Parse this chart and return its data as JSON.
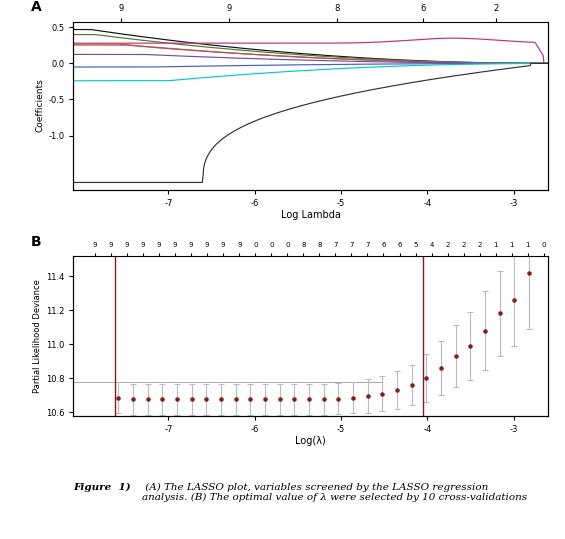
{
  "fig_width": 5.65,
  "fig_height": 5.39,
  "dpi": 100,
  "panel_A": {
    "label": "A",
    "xlabel": "Log Lambda",
    "ylabel": "Coefficients",
    "xlim": [
      -8.1,
      -2.6
    ],
    "ylim": [
      -1.75,
      0.58
    ],
    "yticks": [
      0.5,
      0.0,
      -0.5,
      -1.0
    ],
    "ytick_labels": [
      "0.5",
      "0.0",
      "-0.5",
      "-1.0"
    ],
    "xticks": [
      -7,
      -6,
      -5,
      -4,
      -3
    ],
    "top_ticks_labels": [
      "9",
      "9",
      "8",
      "6",
      "2"
    ],
    "top_ticks_pos": [
      -7.55,
      -6.3,
      -5.05,
      -4.05,
      -3.2
    ],
    "lines": [
      {
        "color": "#111111",
        "final_y": 0.47,
        "zero_x": -7.9,
        "shape": "pos_flat",
        "peak_x": null,
        "peak_y": null
      },
      {
        "color": "#4a7a2a",
        "final_y": 0.4,
        "zero_x": -7.85,
        "shape": "pos_flat",
        "peak_x": null,
        "peak_y": null
      },
      {
        "color": "#c03080",
        "final_y": 0.28,
        "zero_x": -7.7,
        "shape": "pos_bump",
        "peak_x": -3.7,
        "peak_y": 0.35
      },
      {
        "color": "#b06060",
        "final_y": 0.27,
        "zero_x": -7.6,
        "shape": "pos_flat",
        "peak_x": null,
        "peak_y": null
      },
      {
        "color": "#c05050",
        "final_y": 0.255,
        "zero_x": -7.5,
        "shape": "pos_flat",
        "peak_x": null,
        "peak_y": null
      },
      {
        "color": "#7050a0",
        "final_y": 0.125,
        "zero_x": -7.3,
        "shape": "pos_flat",
        "peak_x": null,
        "peak_y": null
      },
      {
        "color": "#4060c0",
        "final_y": -0.05,
        "zero_x": -7.2,
        "shape": "neg_flat",
        "peak_x": null,
        "peak_y": null
      },
      {
        "color": "#00cccc",
        "final_y": -0.24,
        "zero_x": -7.0,
        "shape": "neg_flat",
        "peak_x": null,
        "peak_y": null
      },
      {
        "color": "#333333",
        "final_y": -1.65,
        "zero_x": -6.6,
        "shape": "neg_large",
        "peak_x": null,
        "peak_y": null
      }
    ]
  },
  "panel_B": {
    "label": "B",
    "xlabel": "Log(λ)",
    "ylabel": "Partial Likelihood Deviance",
    "xlim": [
      -8.1,
      -2.6
    ],
    "ylim": [
      10.58,
      11.52
    ],
    "yticks": [
      10.6,
      10.8,
      11.0,
      11.2,
      11.4
    ],
    "ytick_labels": [
      "10.6",
      "10.8",
      "11.0",
      "11.2",
      "11.4"
    ],
    "xticks": [
      -7,
      -6,
      -5,
      -4,
      -3
    ],
    "vline1_x": -7.62,
    "vline2_x": -4.05,
    "top_numbers": [
      9,
      9,
      9,
      9,
      9,
      9,
      9,
      9,
      9,
      9,
      0,
      0,
      0,
      8,
      8,
      7,
      7,
      7,
      6,
      6,
      5,
      4,
      2,
      2,
      2,
      1,
      1,
      1,
      0
    ],
    "points_x": [
      -7.58,
      -7.41,
      -7.24,
      -7.07,
      -6.9,
      -6.73,
      -6.56,
      -6.39,
      -6.22,
      -6.05,
      -5.88,
      -5.71,
      -5.54,
      -5.37,
      -5.2,
      -5.03,
      -4.86,
      -4.69,
      -4.52,
      -4.35,
      -4.18,
      -4.01,
      -3.84,
      -3.67,
      -3.5,
      -3.33,
      -3.16,
      -2.99,
      -2.82
    ],
    "points_y": [
      10.685,
      10.675,
      10.675,
      10.675,
      10.675,
      10.675,
      10.675,
      10.675,
      10.675,
      10.675,
      10.675,
      10.675,
      10.675,
      10.675,
      10.675,
      10.68,
      10.685,
      10.695,
      10.71,
      10.73,
      10.76,
      10.8,
      10.86,
      10.93,
      10.99,
      11.08,
      11.18,
      11.26,
      11.42
    ],
    "errors_lo": [
      0.09,
      0.09,
      0.09,
      0.09,
      0.09,
      0.09,
      0.09,
      0.09,
      0.09,
      0.09,
      0.09,
      0.09,
      0.09,
      0.09,
      0.09,
      0.09,
      0.09,
      0.1,
      0.1,
      0.11,
      0.12,
      0.14,
      0.16,
      0.18,
      0.2,
      0.23,
      0.25,
      0.27,
      0.33
    ],
    "errors_hi": [
      0.09,
      0.09,
      0.09,
      0.09,
      0.09,
      0.09,
      0.09,
      0.09,
      0.09,
      0.09,
      0.09,
      0.09,
      0.09,
      0.09,
      0.09,
      0.09,
      0.09,
      0.1,
      0.1,
      0.11,
      0.12,
      0.14,
      0.16,
      0.18,
      0.2,
      0.23,
      0.25,
      0.27,
      0.33
    ]
  },
  "caption_bold": "Figure  1)",
  "caption_italic": " (A) The LASSO plot, variables screened by the LASSO regression\nanalysis. (B) The optimal value of λ were selected by 10 cross-validations",
  "background_color": "#ffffff",
  "vline_color": "#8b1a1a",
  "error_bar_color": "#bbbbbb",
  "dot_color": "#8b1a1a"
}
